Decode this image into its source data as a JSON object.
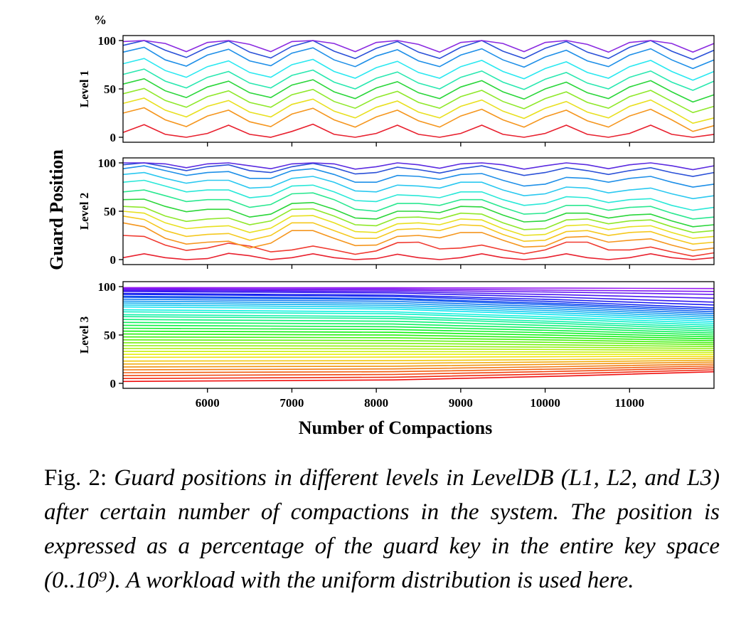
{
  "figure": {
    "ylabel": "Guard Position",
    "xlabel": "Number of Compactions",
    "unit": "%"
  },
  "caption": {
    "label": "Fig. 2: ",
    "text": "Guard positions in different levels in LevelDB (L1, L2, and L3) after certain number of compactions in the system. The position is expressed as a percentage of the guard key in the entire key space (0..10⁹). A workload with the uniform distribution is used here."
  },
  "chart_data": [
    {
      "type": "line",
      "panel_label": "Level 1",
      "xlim": [
        5000,
        12000
      ],
      "ylim": [
        0,
        100
      ],
      "yticks": [
        0,
        50,
        100
      ],
      "xticks": [
        6000,
        7000,
        8000,
        9000,
        10000,
        11000
      ],
      "x": [
        5000,
        5500,
        6000,
        6500,
        7000,
        7500,
        8000,
        8500,
        9000,
        9500,
        10000,
        10500,
        11000,
        11500,
        12000
      ],
      "series": [
        {
          "color": "#e8202e",
          "values": [
            5,
            3,
            4,
            3,
            6,
            3,
            4,
            3,
            4,
            3,
            4,
            3,
            4,
            3,
            3
          ]
        },
        {
          "color": "#f5961e",
          "values": [
            25,
            18,
            22,
            16,
            24,
            18,
            21,
            17,
            22,
            18,
            21,
            17,
            22,
            18,
            12
          ]
        },
        {
          "color": "#e8e020",
          "values": [
            35,
            28,
            32,
            26,
            34,
            27,
            31,
            26,
            32,
            27,
            30,
            26,
            32,
            27,
            20
          ]
        },
        {
          "color": "#8fe82a",
          "values": [
            45,
            38,
            42,
            36,
            44,
            37,
            41,
            36,
            42,
            37,
            40,
            36,
            42,
            37,
            32
          ]
        },
        {
          "color": "#2ad63a",
          "values": [
            55,
            48,
            52,
            46,
            54,
            47,
            51,
            46,
            52,
            47,
            50,
            46,
            52,
            47,
            44
          ]
        },
        {
          "color": "#2ae8b0",
          "values": [
            65,
            58,
            62,
            56,
            64,
            57,
            61,
            56,
            62,
            57,
            60,
            56,
            62,
            57,
            58
          ]
        },
        {
          "color": "#2ae8f0",
          "values": [
            76,
            69,
            73,
            67,
            75,
            68,
            72,
            67,
            73,
            68,
            71,
            67,
            73,
            68,
            68
          ]
        },
        {
          "color": "#1e8fe8",
          "values": [
            88,
            80,
            85,
            79,
            87,
            80,
            84,
            79,
            85,
            80,
            83,
            79,
            85,
            80,
            80
          ]
        },
        {
          "color": "#2a50d8",
          "values": [
            95,
            90,
            93,
            88,
            94,
            89,
            92,
            88,
            93,
            89,
            92,
            88,
            93,
            89,
            90
          ]
        },
        {
          "color": "#8a2ae0",
          "values": [
            99,
            97,
            98,
            96,
            99,
            97,
            98,
            96,
            98,
            97,
            98,
            96,
            98,
            97,
            97
          ]
        }
      ]
    },
    {
      "type": "line",
      "panel_label": "Level 2",
      "xlim": [
        5000,
        12000
      ],
      "ylim": [
        0,
        100
      ],
      "yticks": [
        0,
        50,
        100
      ],
      "xticks": [
        6000,
        7000,
        8000,
        9000,
        10000,
        11000
      ],
      "x": [
        5000,
        5500,
        6000,
        6500,
        7000,
        7500,
        8000,
        8500,
        9000,
        9500,
        10000,
        10500,
        11000,
        11500,
        12000
      ],
      "series": [
        {
          "color": "#e8202e",
          "values": [
            2,
            2,
            1,
            4,
            2,
            2,
            1,
            2,
            2,
            2,
            2,
            2,
            2,
            2,
            2
          ]
        },
        {
          "color": "#f03a30",
          "values": [
            25,
            15,
            12,
            14,
            10,
            10,
            9,
            18,
            12,
            10,
            10,
            18,
            10,
            8,
            7
          ]
        },
        {
          "color": "#f5961e",
          "values": [
            38,
            22,
            18,
            12,
            30,
            22,
            15,
            25,
            28,
            20,
            14,
            24,
            20,
            15,
            12
          ]
        },
        {
          "color": "#f5c81e",
          "values": [
            45,
            30,
            26,
            20,
            38,
            30,
            22,
            32,
            36,
            26,
            20,
            30,
            28,
            22,
            18
          ]
        },
        {
          "color": "#e8e020",
          "values": [
            50,
            38,
            34,
            28,
            45,
            38,
            28,
            38,
            42,
            32,
            26,
            36,
            34,
            28,
            24
          ]
        },
        {
          "color": "#8fe82a",
          "values": [
            55,
            45,
            42,
            36,
            52,
            45,
            35,
            44,
            48,
            38,
            32,
            42,
            40,
            34,
            30
          ]
        },
        {
          "color": "#2ad63a",
          "values": [
            62,
            55,
            52,
            44,
            58,
            52,
            42,
            50,
            55,
            46,
            40,
            48,
            46,
            40,
            36
          ]
        },
        {
          "color": "#2ae890",
          "values": [
            70,
            66,
            62,
            54,
            68,
            62,
            50,
            58,
            62,
            54,
            48,
            56,
            54,
            48,
            44
          ]
        },
        {
          "color": "#2ae8d8",
          "values": [
            80,
            76,
            72,
            64,
            76,
            70,
            60,
            66,
            70,
            62,
            58,
            64,
            62,
            56,
            54
          ]
        },
        {
          "color": "#2ac8f0",
          "values": [
            88,
            84,
            82,
            74,
            84,
            80,
            70,
            76,
            80,
            72,
            68,
            74,
            72,
            68,
            66
          ]
        },
        {
          "color": "#1e8fe8",
          "values": [
            94,
            92,
            90,
            84,
            92,
            88,
            80,
            86,
            88,
            82,
            78,
            84,
            84,
            80,
            78
          ]
        },
        {
          "color": "#2a50d8",
          "values": [
            98,
            96,
            96,
            92,
            96,
            95,
            90,
            93,
            94,
            92,
            90,
            92,
            92,
            90,
            90
          ]
        },
        {
          "color": "#5a2ae0",
          "values": [
            100,
            99,
            99,
            97,
            99,
            99,
            96,
            98,
            99,
            98,
            97,
            98,
            98,
            97,
            97
          ]
        }
      ]
    },
    {
      "type": "line",
      "panel_label": "Level 3",
      "xlim": [
        5000,
        12000
      ],
      "ylim": [
        0,
        100
      ],
      "yticks": [
        0,
        50,
        100
      ],
      "xticks": [
        6000,
        7000,
        8000,
        9000,
        10000,
        11000
      ],
      "x": [
        5000,
        8200,
        10200,
        12000
      ],
      "series_note": "fan of 40 guard lines; series values generated from start and end levels",
      "series_count": 40,
      "start_levels": [
        2,
        5,
        8,
        11,
        14,
        17,
        20,
        23,
        27,
        30,
        33,
        36,
        39,
        42,
        45,
        48,
        51,
        54,
        57,
        60,
        63,
        66,
        69,
        71,
        74,
        76,
        79,
        81,
        83,
        85,
        87,
        89,
        90,
        92,
        93,
        95,
        96,
        97,
        98,
        99
      ],
      "end_levels": [
        12,
        14,
        16,
        18,
        20,
        22,
        24,
        26,
        28,
        30,
        32,
        34,
        36,
        38,
        40,
        42,
        44,
        46,
        48,
        50,
        52,
        54,
        56,
        58,
        60,
        62,
        64,
        66,
        68,
        70,
        72,
        74,
        76,
        78,
        81,
        84,
        88,
        92,
        95,
        98
      ]
    }
  ]
}
